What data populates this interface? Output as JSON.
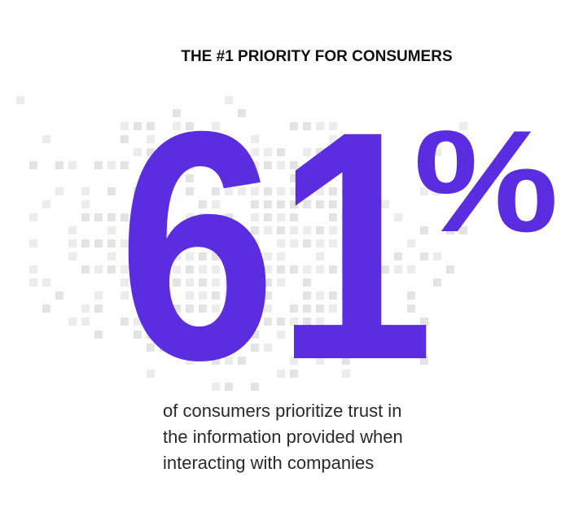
{
  "header": {
    "title": "THE #1 PRIORITY FOR CONSUMERS"
  },
  "stat": {
    "number": "61",
    "unit": "%"
  },
  "description": {
    "lines": [
      "of consumers prioritize trust in",
      "the information provided when",
      "interacting with companies"
    ]
  }
}
